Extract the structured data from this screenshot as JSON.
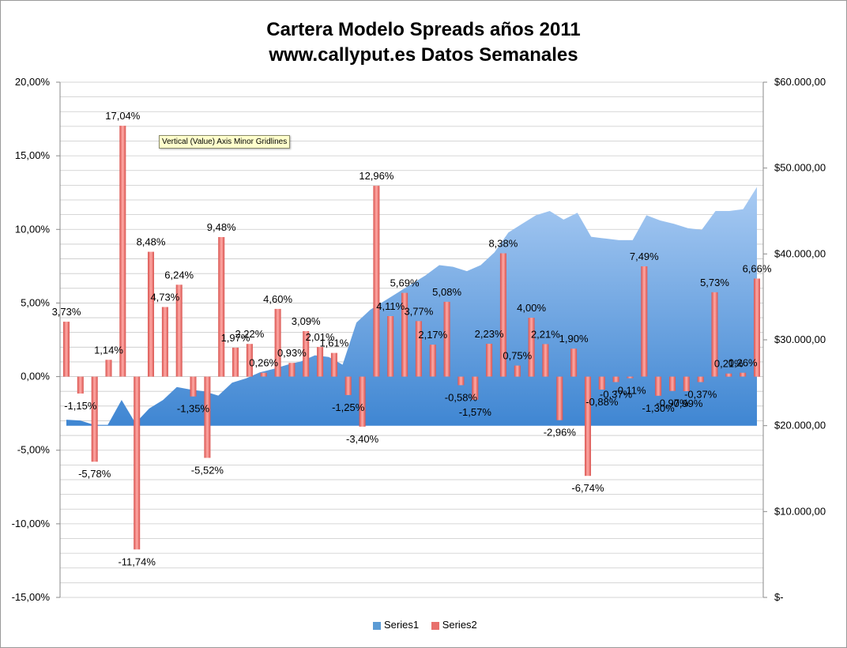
{
  "title_line1": "Cartera Modelo Spreads años 2011",
  "title_line2": "www.callyput.es Datos Semanales",
  "tooltip": "Vertical (Value) Axis Minor Gridlines",
  "colors": {
    "series1": "#5b9bd5",
    "series2": "#e8706c",
    "grid": "#c9c9c9"
  },
  "chart_data": {
    "type": "bar",
    "y_left_ticks": [
      "20,00%",
      "15,00%",
      "10,00%",
      "5,00%",
      "0,00%",
      "-5,00%",
      "-10,00%",
      "-15,00%"
    ],
    "y_right_ticks": [
      "$60.000,00",
      "$50.000,00",
      "$40.000,00",
      "$30.000,00",
      "$20.000,00",
      "$10.000,00",
      "$-"
    ],
    "ylim_left": [
      -15,
      20
    ],
    "ylim_right": [
      0,
      60000
    ],
    "grid": true,
    "legend_position": "bottom",
    "series": [
      {
        "name": "Series1",
        "type": "area",
        "axis": "right",
        "values": [
          20700,
          20600,
          20100,
          20100,
          23000,
          20300,
          22000,
          23000,
          24500,
          24200,
          24000,
          23500,
          25000,
          25500,
          26200,
          26600,
          27100,
          27500,
          28200,
          28000,
          27100,
          32000,
          33500,
          34500,
          35500,
          36500,
          37500,
          38700,
          38500,
          38000,
          38700,
          40200,
          42500,
          43500,
          44500,
          45000,
          44000,
          44800,
          42000,
          41800,
          41600,
          41600,
          44500,
          43900,
          43500,
          43000,
          42800,
          45000,
          45000,
          45200,
          47800
        ]
      },
      {
        "name": "Series2",
        "type": "bar",
        "axis": "left",
        "values": [
          3.73,
          -1.15,
          -5.78,
          1.14,
          17.04,
          -11.74,
          8.48,
          4.73,
          6.24,
          -1.35,
          -5.52,
          9.48,
          1.97,
          2.22,
          0.26,
          4.6,
          0.93,
          3.09,
          2.01,
          1.61,
          -1.25,
          -3.4,
          12.96,
          4.11,
          5.69,
          3.77,
          2.17,
          5.08,
          -0.58,
          -1.57,
          2.23,
          8.38,
          0.75,
          4.0,
          2.21,
          -2.96,
          1.9,
          -6.74,
          -0.88,
          -0.37,
          -0.11,
          7.49,
          -1.3,
          -0.97,
          -0.99,
          -0.37,
          5.73,
          0.21,
          0.26,
          6.66
        ],
        "labels": [
          "3,73%",
          "-1,15%",
          "-5,78%",
          "1,14%",
          "17,04%",
          "-11,74%",
          "8,48%",
          "4,73%",
          "6,24%",
          "-1,35%",
          "-5,52%",
          "9,48%",
          "1,97%",
          "2,22%",
          "0,26%",
          "4,60%",
          "0,93%",
          "3,09%",
          "2,01%",
          "1,61%",
          "-1,25%",
          "-3,40%",
          "12,96%",
          "4,11%",
          "5,69%",
          "3,77%",
          "2,17%",
          "5,08%",
          "-0,58%",
          "-1,57%",
          "2,23%",
          "8,38%",
          "0,75%",
          "4,00%",
          "2,21%",
          "-2,96%",
          "1,90%",
          "-6,74%",
          "-0,88%",
          "-0,37%",
          "-0,11%",
          "7,49%",
          "-1,30%",
          "-0,97%",
          "-0,99%",
          "-0,37%",
          "5,73%",
          "0,21%",
          "0,26%",
          "6,66%"
        ]
      }
    ]
  }
}
